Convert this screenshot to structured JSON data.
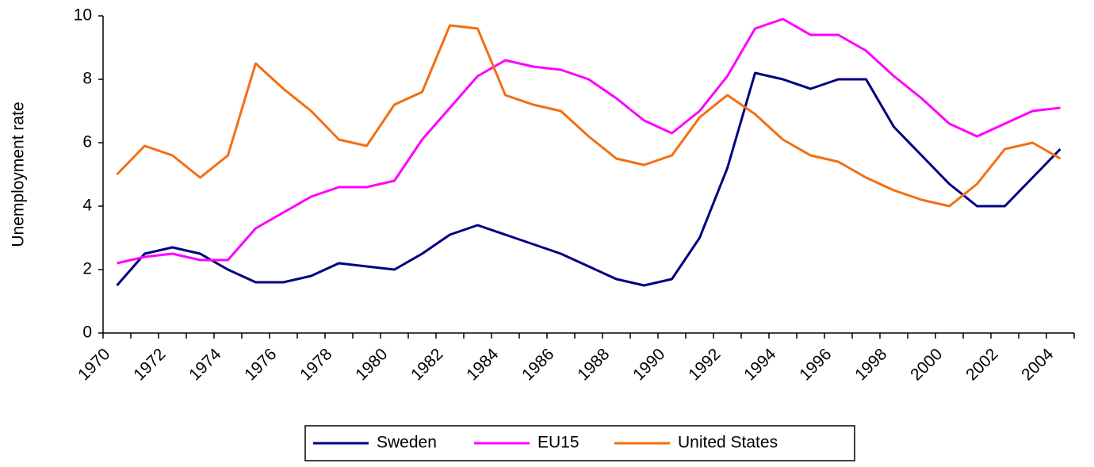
{
  "chart_data": {
    "type": "line",
    "y_label": "Unemployment rate",
    "categories": [
      "1970",
      null,
      "1972",
      null,
      "1974",
      null,
      "1976",
      null,
      "1978",
      null,
      "1980",
      null,
      "1982",
      null,
      "1984",
      null,
      "1986",
      null,
      "1988",
      null,
      "1990",
      null,
      "1992",
      null,
      "1994",
      null,
      "1996",
      null,
      "1998",
      null,
      "2000",
      null,
      "2002",
      null,
      "2004"
    ],
    "series": [
      {
        "name": "Sweden",
        "color": "#000080",
        "values": [
          1.5,
          2.5,
          2.7,
          2.5,
          2.0,
          1.6,
          1.6,
          1.8,
          2.2,
          2.1,
          2.0,
          2.5,
          3.1,
          3.4,
          3.1,
          2.8,
          2.5,
          2.1,
          1.7,
          1.5,
          1.7,
          3.0,
          5.2,
          8.2,
          8.0,
          7.7,
          8.0,
          8.0,
          6.5,
          5.6,
          4.7,
          4.0,
          4.0,
          4.9,
          5.8
        ]
      },
      {
        "name": "EU15",
        "color": "#ff00ff",
        "values": [
          2.2,
          2.4,
          2.5,
          2.3,
          2.3,
          3.3,
          3.8,
          4.3,
          4.6,
          4.6,
          4.8,
          6.1,
          7.1,
          8.1,
          8.6,
          8.4,
          8.3,
          8.0,
          7.4,
          6.7,
          6.3,
          7.0,
          8.1,
          9.6,
          9.9,
          9.4,
          9.4,
          8.9,
          8.1,
          7.4,
          6.6,
          6.2,
          6.6,
          7.0,
          7.1
        ]
      },
      {
        "name": "United States",
        "color": "#f26f12",
        "values": [
          5.0,
          5.9,
          5.6,
          4.9,
          5.6,
          8.5,
          7.7,
          7.0,
          6.1,
          5.9,
          7.2,
          7.6,
          9.7,
          9.6,
          7.5,
          7.2,
          7.0,
          6.2,
          5.5,
          5.3,
          5.6,
          6.8,
          7.5,
          6.9,
          6.1,
          5.6,
          5.4,
          4.9,
          4.5,
          4.2,
          4.0,
          4.7,
          5.8,
          6.0,
          5.5
        ]
      }
    ],
    "ylim": [
      0,
      10
    ],
    "yticks": [
      0,
      2,
      4,
      6,
      8,
      10
    ],
    "grid": false,
    "legend": "bottom"
  }
}
